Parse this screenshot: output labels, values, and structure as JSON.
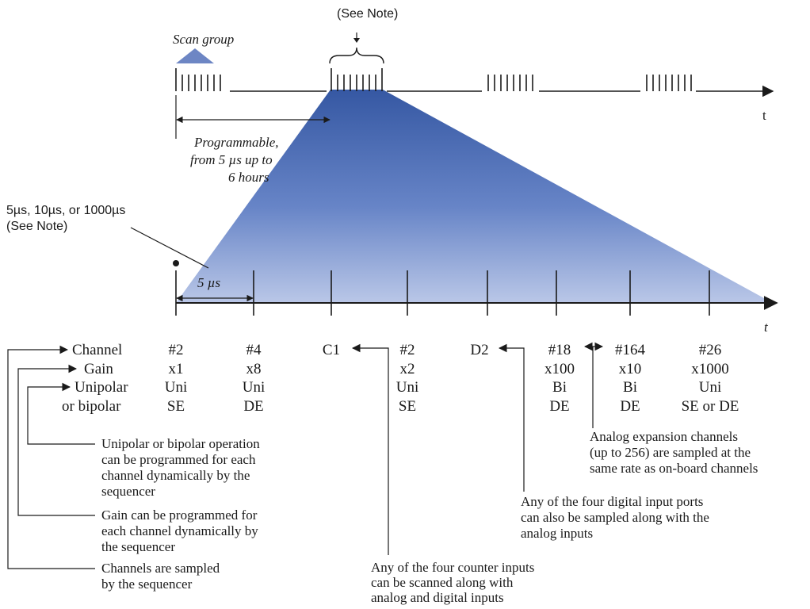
{
  "top_timeline": {
    "see_note_top": "(See Note)",
    "scan_group": "Scan group",
    "t_label": "t",
    "programmable_lines": [
      "Programmable,",
      "from 5 µs up to",
      "6 hours"
    ]
  },
  "note_left": {
    "lines": [
      "5µs, 10µs, or 1000µs",
      "(See Note)"
    ]
  },
  "main_axis": {
    "interval_label": "5 µs",
    "t_label": "t"
  },
  "row_labels": {
    "channel": "Channel",
    "gain": "Gain",
    "unipolar": "Unipolar",
    "or_bipolar": "or bipolar"
  },
  "columns": [
    {
      "channel": "#2",
      "gain": "x1",
      "polarity": "Uni",
      "mode": "SE"
    },
    {
      "channel": "#4",
      "gain": "x8",
      "polarity": "Uni",
      "mode": "DE"
    },
    {
      "channel": "C1",
      "gain": "",
      "polarity": "",
      "mode": ""
    },
    {
      "channel": "#2",
      "gain": "x2",
      "polarity": "Uni",
      "mode": "SE"
    },
    {
      "channel": "D2",
      "gain": "",
      "polarity": "",
      "mode": ""
    },
    {
      "channel": "#18",
      "gain": "x100",
      "polarity": "Bi",
      "mode": "DE"
    },
    {
      "channel": "#164",
      "gain": "x10",
      "polarity": "Bi",
      "mode": "DE"
    },
    {
      "channel": "#26",
      "gain": "x1000",
      "polarity": "Uni",
      "mode": "SE or DE"
    }
  ],
  "notes": {
    "unipolar": [
      "Unipolar or bipolar operation",
      "can be programmed for each",
      "channel dynamically by the",
      "sequencer"
    ],
    "gain": [
      "Gain can be programmed for",
      "each channel dynamically by",
      "the sequencer"
    ],
    "channels": [
      "Channels are sampled",
      "by the sequencer"
    ],
    "counter": [
      "Any of the four counter inputs",
      "can be scanned along with",
      "analog and digital inputs"
    ],
    "digital": [
      "Any of the four digital input ports",
      "can also be sampled along with the",
      "analog inputs"
    ],
    "expansion": [
      "Analog expansion channels",
      "(up to 256) are sampled at the",
      "same rate as on-board channels"
    ]
  },
  "colors": {
    "ink": "#1a1a1a",
    "wedge_dark": "#2b4f9e",
    "wedge_light": "#b6c4e6",
    "scan_group_marker": "#6d86c4"
  }
}
